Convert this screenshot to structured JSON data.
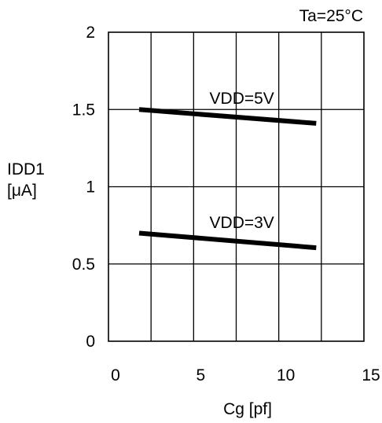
{
  "chart_data": {
    "type": "line",
    "annotation": "Ta=25°C",
    "xlabel": "Cg [pf]",
    "ylabel": [
      "IDD1",
      "[μA]"
    ],
    "xlim": [
      0,
      15
    ],
    "ylim": [
      0,
      2
    ],
    "xticks": [
      0,
      5,
      10,
      15
    ],
    "xtick_labels": [
      "0",
      "5",
      "10",
      "15"
    ],
    "yticks": [
      0,
      0.5,
      1,
      1.5,
      2
    ],
    "ytick_labels": [
      "0",
      "0.5",
      "1",
      "1.5",
      "2"
    ],
    "x_gridlines": [
      2.5,
      5,
      7.5,
      10,
      12.5
    ],
    "grid": true,
    "series": [
      {
        "name": "VDD=5V",
        "x": [
          1.8,
          12.2
        ],
        "y": [
          1.5,
          1.41
        ],
        "color": "#000000"
      },
      {
        "name": "VDD=3V",
        "x": [
          1.8,
          12.2
        ],
        "y": [
          0.7,
          0.605
        ],
        "color": "#000000"
      }
    ]
  }
}
